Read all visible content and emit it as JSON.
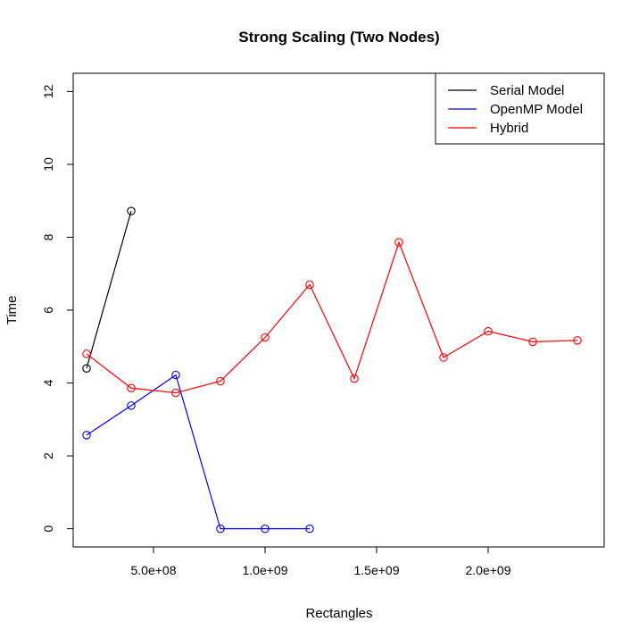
{
  "chart_data": {
    "type": "line",
    "title": "Strong Scaling (Two Nodes)",
    "xlabel": "Rectangles",
    "ylabel": "Time",
    "xlim": [
      140000000,
      2520000000
    ],
    "ylim": [
      -0.5,
      12.5
    ],
    "x_ticks": [
      500000000,
      1000000000,
      1500000000,
      2000000000
    ],
    "x_tick_labels": [
      "5.0e+08",
      "1.0e+09",
      "1.5e+09",
      "2.0e+09"
    ],
    "y_ticks": [
      0,
      2,
      4,
      6,
      8,
      10,
      12
    ],
    "y_tick_labels": [
      "0",
      "2",
      "4",
      "6",
      "8",
      "10",
      "12"
    ],
    "legend_position": "top-right",
    "series": [
      {
        "name": "Serial Model",
        "color": "#000000",
        "x": [
          200000000,
          400000000
        ],
        "y": [
          4.4,
          8.72
        ]
      },
      {
        "name": "OpenMP Model",
        "color": "#0000ff",
        "x": [
          200000000,
          400000000,
          600000000,
          800000000,
          1000000000,
          1200000000
        ],
        "y": [
          2.57,
          3.38,
          4.22,
          0.0,
          0.0,
          0.0
        ]
      },
      {
        "name": "Hybrid",
        "color": "#ff0000",
        "x": [
          200000000,
          400000000,
          600000000,
          800000000,
          1000000000,
          1200000000,
          1400000000,
          1600000000,
          1800000000,
          2000000000,
          2200000000,
          2400000000
        ],
        "y": [
          4.8,
          3.86,
          3.73,
          4.05,
          5.25,
          6.7,
          4.12,
          7.86,
          4.7,
          5.42,
          5.13,
          5.17
        ]
      }
    ]
  }
}
